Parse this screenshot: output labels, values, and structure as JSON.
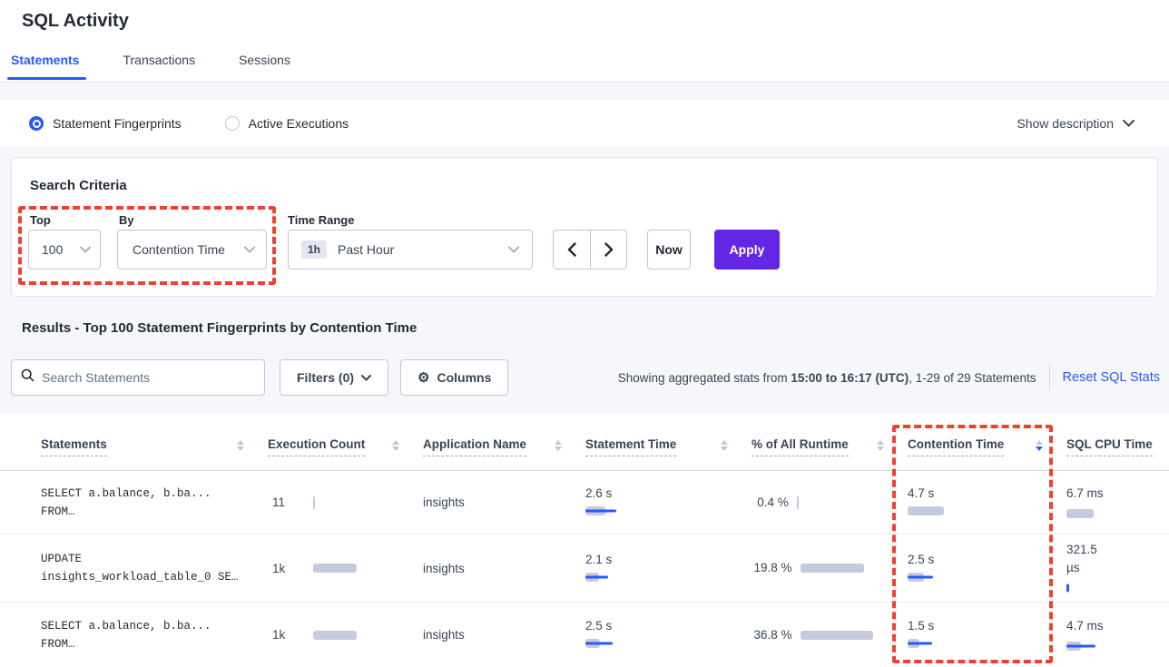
{
  "page": {
    "title": "SQL Activity"
  },
  "tabs": {
    "items": [
      {
        "label": "Statements",
        "active": true
      },
      {
        "label": "Transactions",
        "active": false
      },
      {
        "label": "Sessions",
        "active": false
      }
    ]
  },
  "view_toggle": {
    "fingerprints_label": "Statement Fingerprints",
    "fingerprints_selected": true,
    "active_executions_label": "Active Executions",
    "active_executions_selected": false,
    "show_description_label": "Show description"
  },
  "search_criteria": {
    "title": "Search Criteria",
    "top_label": "Top",
    "top_value": "100",
    "by_label": "By",
    "by_value": "Contention Time",
    "time_range_label": "Time Range",
    "time_range_badge": "1h",
    "time_range_value": "Past Hour",
    "now_label": "Now",
    "apply_label": "Apply"
  },
  "results": {
    "title": "Results - Top 100 Statement Fingerprints by Contention Time",
    "search_placeholder": "Search Statements",
    "filters_label": "Filters (0)",
    "columns_label": "Columns",
    "stats_prefix": "Showing aggregated stats from ",
    "stats_bold": "15:00 to 16:17 (UTC)",
    "stats_suffix": ", 1-29 of 29 Statements",
    "reset_label": "Reset SQL Stats"
  },
  "table": {
    "headers": [
      {
        "label": "Statements",
        "sort": "none"
      },
      {
        "label": "Execution Count",
        "sort": "none"
      },
      {
        "label": "Application Name",
        "sort": "none"
      },
      {
        "label": "Statement Time",
        "sort": "none"
      },
      {
        "label": "% of All Runtime",
        "sort": "none"
      },
      {
        "label": "Contention Time",
        "sort": "desc"
      },
      {
        "label": "SQL CPU Time",
        "sort": "none"
      }
    ],
    "rows": [
      {
        "statement_line1": "SELECT a.balance, b.ba...",
        "statement_line2": "FROM…",
        "execution_count": {
          "value": "11",
          "bar": {
            "gray_w": 2,
            "gray_h": 14,
            "blue_w": 0,
            "blue_h": 3
          }
        },
        "application": "insights",
        "statement_time": {
          "value": "2.6 s",
          "bar": {
            "gray_w": 22,
            "gray_h": 10,
            "blue_w": 34,
            "blue_h": 3
          }
        },
        "pct_runtime": {
          "value": "0.4 %",
          "bar": {
            "gray_w": 2,
            "gray_h": 14,
            "blue_w": 0,
            "blue_h": 3
          }
        },
        "contention_time": {
          "value": "4.7 s",
          "bar": {
            "gray_w": 40,
            "gray_h": 10,
            "blue_w": 0,
            "blue_h": 3
          }
        },
        "sql_cpu_time": {
          "value": "6.7 ms",
          "bar": {
            "gray_w": 30,
            "gray_h": 10,
            "blue_w": 0,
            "blue_h": 3
          }
        }
      },
      {
        "statement_line1": "UPDATE",
        "statement_line2": "insights_workload_table_0 SE…",
        "execution_count": {
          "value": "1k",
          "bar": {
            "gray_w": 48,
            "gray_h": 10,
            "blue_w": 0,
            "blue_h": 3
          }
        },
        "application": "insights",
        "statement_time": {
          "value": "2.1 s",
          "bar": {
            "gray_w": 15,
            "gray_h": 10,
            "blue_w": 25,
            "blue_h": 3
          }
        },
        "pct_runtime": {
          "value": "19.8 %",
          "bar": {
            "gray_w": 70,
            "gray_h": 10,
            "blue_w": 0,
            "blue_h": 3
          }
        },
        "contention_time": {
          "value": "2.5 s",
          "bar": {
            "gray_w": 18,
            "gray_h": 10,
            "blue_w": 28,
            "blue_h": 3
          }
        },
        "sql_cpu_time": {
          "value": "321.5 µs",
          "bar": {
            "gray_w": 0,
            "gray_h": 10,
            "blue_w": 3,
            "blue_h": 9
          }
        }
      },
      {
        "statement_line1": "SELECT a.balance, b.ba...",
        "statement_line2": "FROM…",
        "execution_count": {
          "value": "1k",
          "bar": {
            "gray_w": 48,
            "gray_h": 10,
            "blue_w": 0,
            "blue_h": 3
          }
        },
        "application": "insights",
        "statement_time": {
          "value": "2.5 s",
          "bar": {
            "gray_w": 16,
            "gray_h": 10,
            "blue_w": 30,
            "blue_h": 3
          }
        },
        "pct_runtime": {
          "value": "36.8 %",
          "bar": {
            "gray_w": 80,
            "gray_h": 10,
            "blue_w": 0,
            "blue_h": 3
          }
        },
        "contention_time": {
          "value": "1.5 s",
          "bar": {
            "gray_w": 13,
            "gray_h": 10,
            "blue_w": 27,
            "blue_h": 3
          }
        },
        "sql_cpu_time": {
          "value": "4.7 ms",
          "bar": {
            "gray_w": 16,
            "gray_h": 10,
            "blue_w": 32,
            "blue_h": 3
          }
        }
      }
    ]
  },
  "colors": {
    "accent_blue": "#2759fa",
    "apply_purple": "#6426e6",
    "annotation_red": "#f0412f",
    "bar_gray": "#c5cbdc",
    "bar_blue": "#2759fa"
  }
}
